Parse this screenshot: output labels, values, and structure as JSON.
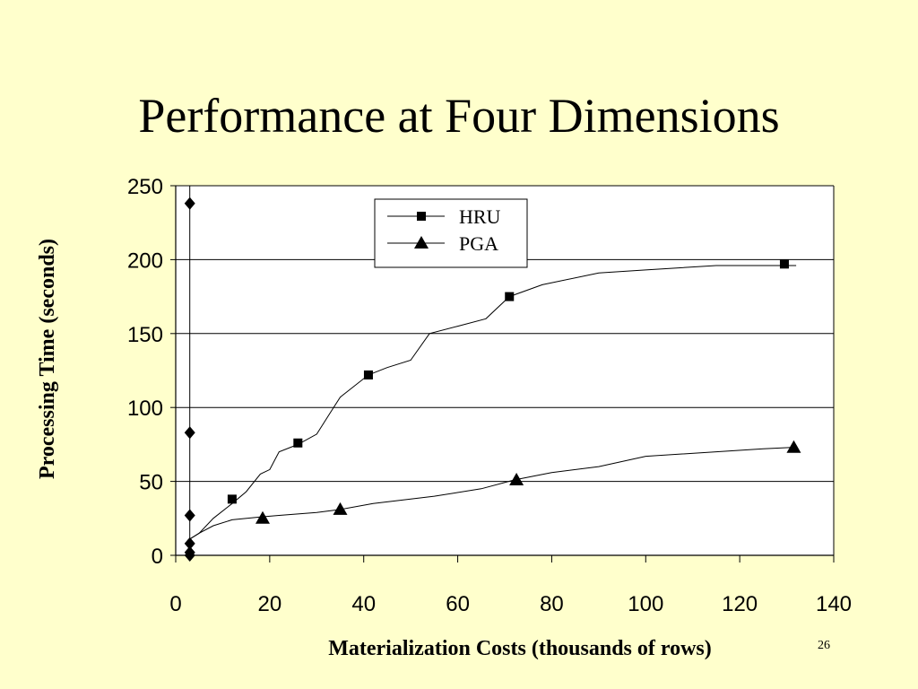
{
  "slide": {
    "title": "Performance at Four Dimensions",
    "page_number": "26"
  },
  "chart_data": {
    "type": "line",
    "title": "",
    "xlabel": "Materialization Costs (thousands of rows)",
    "ylabel": "Processing Time (seconds)",
    "xlim": [
      0,
      140
    ],
    "ylim": [
      0,
      250
    ],
    "xticks": [
      0,
      20,
      40,
      60,
      80,
      100,
      120,
      140
    ],
    "yticks": [
      0,
      50,
      100,
      150,
      200,
      250
    ],
    "grid": "horizontal",
    "legend": {
      "placement": "top-center",
      "entries": [
        "HRU",
        "PGA"
      ]
    },
    "series": [
      {
        "name": "HRU",
        "marker": "square",
        "line": [
          [
            2.5,
            10
          ],
          [
            5,
            15
          ],
          [
            8,
            25
          ],
          [
            12,
            35
          ],
          [
            15,
            43
          ],
          [
            18,
            55
          ],
          [
            20,
            58
          ],
          [
            22,
            70
          ],
          [
            26,
            75
          ],
          [
            30,
            82
          ],
          [
            33,
            97
          ],
          [
            35,
            107
          ],
          [
            41,
            122
          ],
          [
            45,
            127
          ],
          [
            50,
            132
          ],
          [
            54,
            150
          ],
          [
            60,
            155
          ],
          [
            66,
            160
          ],
          [
            71,
            175
          ],
          [
            78,
            183
          ],
          [
            90,
            191
          ],
          [
            100,
            193
          ],
          [
            115,
            196
          ],
          [
            130,
            196
          ],
          [
            132,
            196
          ]
        ],
        "markers": [
          [
            12,
            38
          ],
          [
            26,
            76
          ],
          [
            41,
            122
          ],
          [
            71,
            175
          ],
          [
            129.5,
            197
          ]
        ]
      },
      {
        "name": "PGA",
        "marker": "triangle",
        "line": [
          [
            2.5,
            10
          ],
          [
            5,
            15
          ],
          [
            8,
            20
          ],
          [
            12,
            24
          ],
          [
            18,
            26
          ],
          [
            22,
            27
          ],
          [
            30,
            29
          ],
          [
            35,
            31
          ],
          [
            42,
            35
          ],
          [
            55,
            40
          ],
          [
            65,
            45
          ],
          [
            72,
            51
          ],
          [
            80,
            56
          ],
          [
            90,
            60
          ],
          [
            100,
            67
          ],
          [
            115,
            70
          ],
          [
            125,
            72
          ],
          [
            131,
            73
          ]
        ],
        "markers": [
          [
            18.5,
            25
          ],
          [
            35,
            31
          ],
          [
            72.5,
            51
          ],
          [
            131.5,
            73
          ]
        ]
      },
      {
        "name": "",
        "marker": "diamond",
        "line": [
          [
            3,
            0
          ],
          [
            3,
            250
          ]
        ],
        "markers": [
          [
            3,
            0
          ],
          [
            3,
            2
          ],
          [
            3,
            8
          ],
          [
            3,
            27
          ],
          [
            3,
            83
          ],
          [
            3,
            238
          ]
        ]
      }
    ]
  }
}
